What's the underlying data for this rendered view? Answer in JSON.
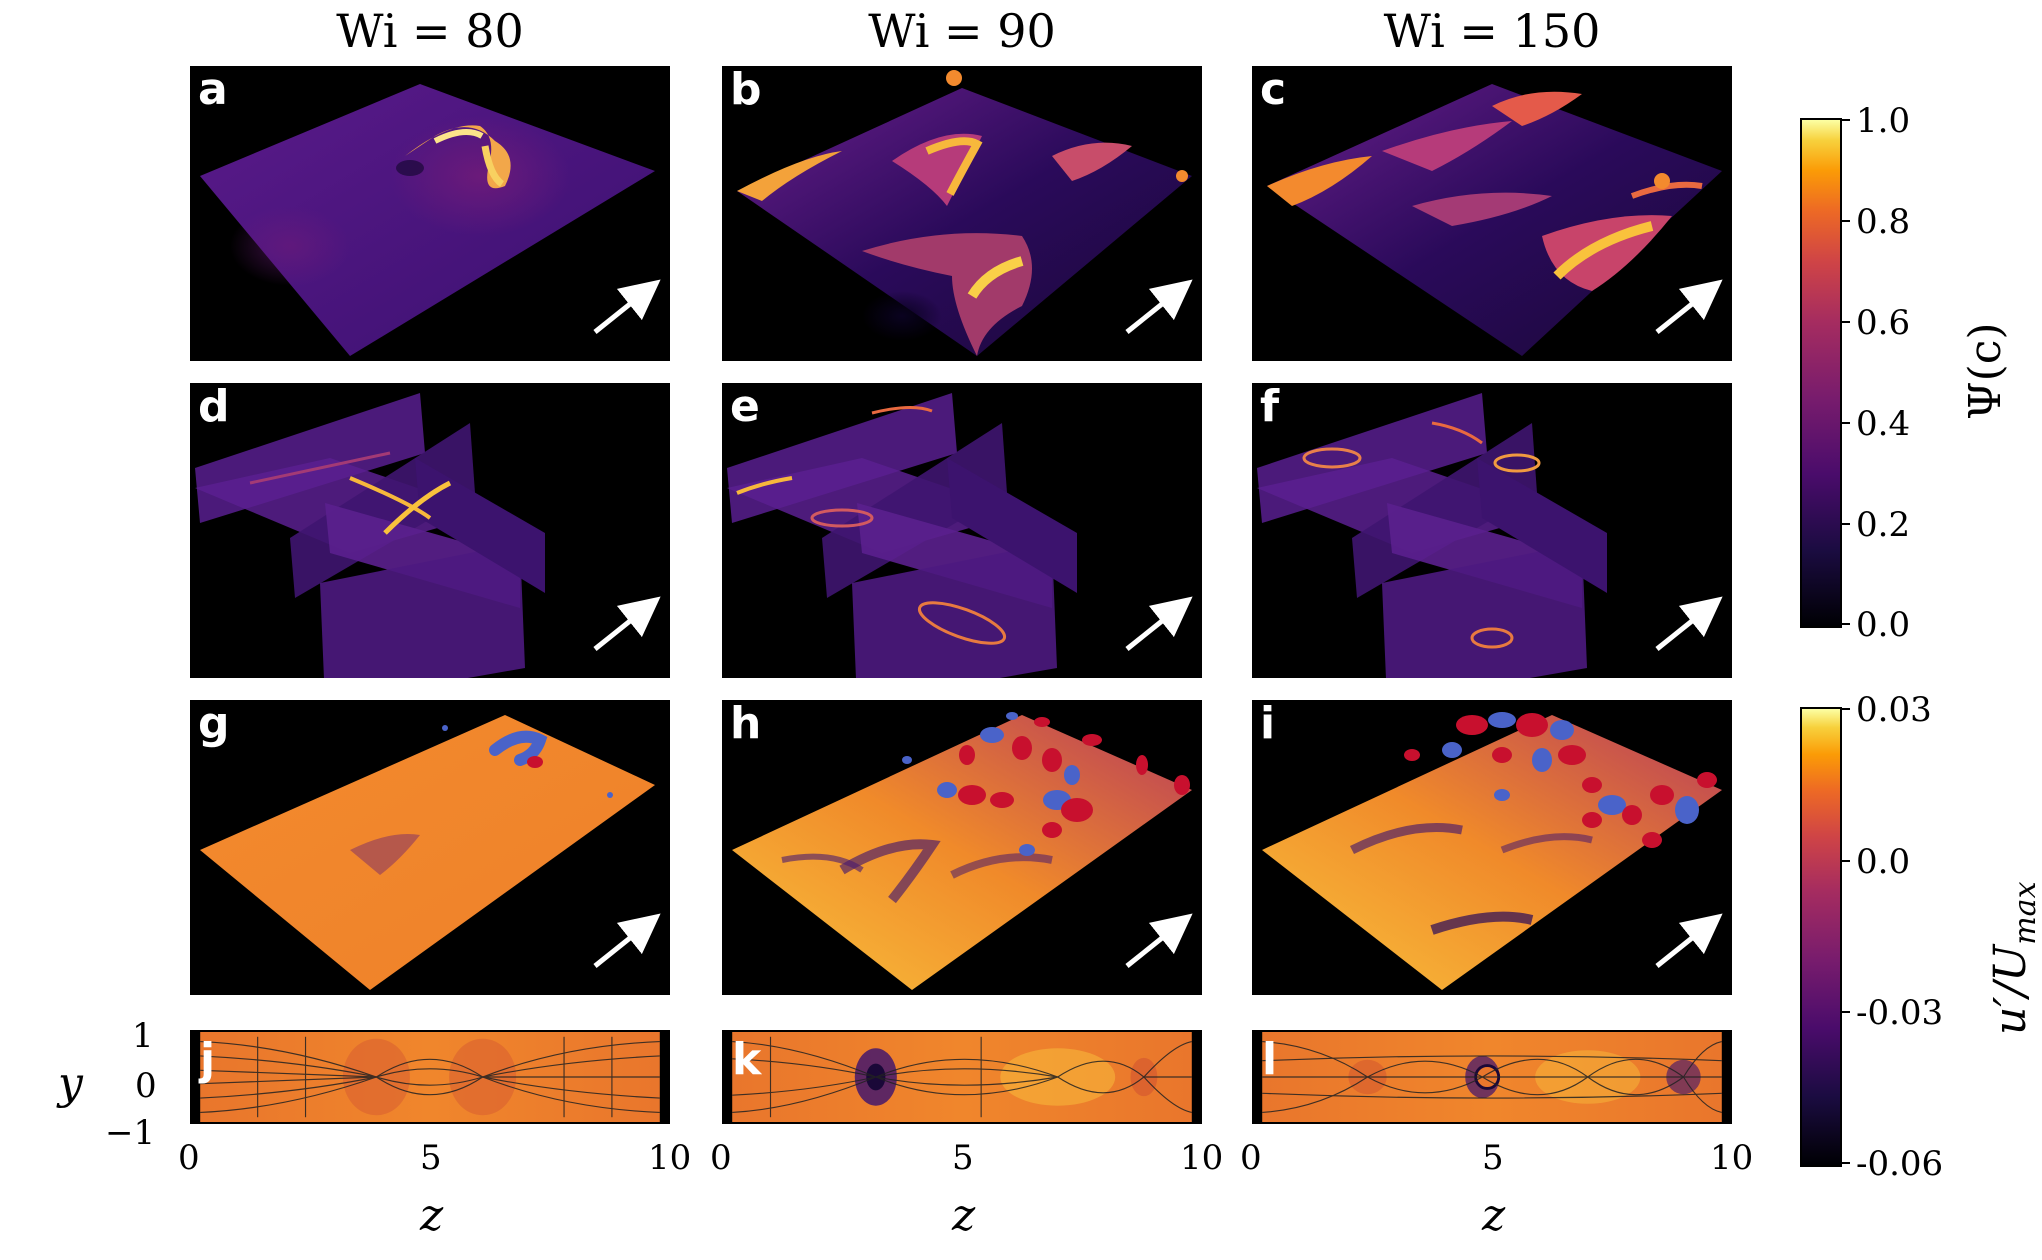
{
  "columns": [
    "Wi = 80",
    "Wi = 90",
    "Wi = 150"
  ],
  "panel_labels": [
    "a",
    "b",
    "c",
    "d",
    "e",
    "f",
    "g",
    "h",
    "i",
    "j",
    "k",
    "l"
  ],
  "streamline_axes": {
    "ylabel": "y",
    "xlabel": "z",
    "yticks": [
      "1",
      "0",
      "−1"
    ],
    "xticks": [
      "0",
      "5",
      "10"
    ]
  },
  "colorbar_psi": {
    "label": "Ψ(c)",
    "ticks": [
      "1.0",
      "0.8",
      "0.6",
      "0.4",
      "0.2",
      "0.0"
    ],
    "colormap": "inferno"
  },
  "colorbar_u": {
    "label": "u′/U",
    "label_sub": "max",
    "ticks": [
      "0.03",
      "0.0",
      "-0.03",
      "-0.06"
    ],
    "colormap": "inferno"
  },
  "colors": {
    "background": "#000000",
    "positive_isosurface": "#c8102e",
    "negative_isosurface": "#4a63c9",
    "arrow": "#ffffff"
  }
}
